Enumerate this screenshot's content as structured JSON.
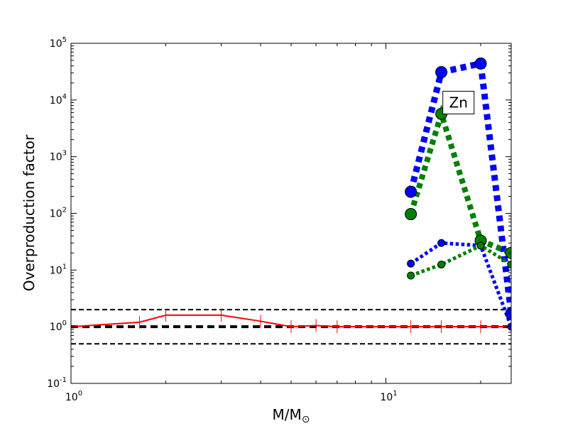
{
  "chart_data": {
    "type": "line",
    "title": "",
    "xlabel": "M/M",
    "xlabel_sub": "⊙",
    "ylabel": "Overproduction factor",
    "xscale": "log",
    "yscale": "log",
    "xlim": [
      1,
      25
    ],
    "ylim": [
      0.1,
      100000
    ],
    "grid": false,
    "x_ticks": [
      {
        "value": 1,
        "base": "10",
        "exp": "0"
      },
      {
        "value": 10,
        "base": "10",
        "exp": "1"
      }
    ],
    "y_ticks": [
      {
        "value": 0.1,
        "base": "10",
        "exp": "-1"
      },
      {
        "value": 1,
        "base": "10",
        "exp": "0"
      },
      {
        "value": 10,
        "base": "10",
        "exp": "1"
      },
      {
        "value": 100,
        "base": "10",
        "exp": "2"
      },
      {
        "value": 1000,
        "base": "10",
        "exp": "3"
      },
      {
        "value": 10000,
        "base": "10",
        "exp": "4"
      },
      {
        "value": 100000,
        "base": "10",
        "exp": "5"
      }
    ],
    "reference_lines": [
      {
        "y": 2.0,
        "style": "dashed",
        "color": "#000000",
        "width": 2
      },
      {
        "y": 1.0,
        "style": "dashed",
        "color": "#000000",
        "width": 4
      },
      {
        "y": 0.5,
        "style": "dashed",
        "color": "#000000",
        "width": 2
      }
    ],
    "series": [
      {
        "color": "#ff0000",
        "style": "solid",
        "width": 2,
        "marker": "vline",
        "x": [
          1.0,
          1.65,
          2.0,
          3.0,
          4.0,
          5.0,
          6.0,
          7.0,
          12.0,
          15.0,
          20.0,
          25.0
        ],
        "y": [
          1.0,
          1.2,
          1.6,
          1.6,
          1.25,
          1.0,
          1.05,
          1.0,
          1.0,
          1.0,
          1.0,
          1.0
        ]
      },
      {
        "color": "#0000ff",
        "style": "dotted",
        "width": 9,
        "marker": "circle",
        "marker_size": 8,
        "x": [
          12.0,
          15.0,
          20.0,
          25.0
        ],
        "y": [
          240,
          31000,
          44000,
          1.7
        ]
      },
      {
        "color": "#008000",
        "style": "dotted",
        "width": 8,
        "marker": "circle",
        "marker_size": 8,
        "x": [
          12.0,
          15.0,
          20.0,
          25.0
        ],
        "y": [
          97,
          5700,
          33,
          20
        ]
      },
      {
        "color": "#0000ff",
        "style": "dotted",
        "width": 5,
        "marker": "circle",
        "marker_size": 5,
        "x": [
          12.0,
          15.0,
          20.0,
          25.0
        ],
        "y": [
          13,
          30,
          27,
          1.0
        ]
      },
      {
        "color": "#008000",
        "style": "dotted",
        "width": 5,
        "marker": "circle",
        "marker_size": 5,
        "x": [
          12.0,
          15.0,
          20.0,
          25.0
        ],
        "y": [
          8,
          12.5,
          27,
          12.5
        ]
      }
    ],
    "annotations": [
      {
        "text": "Zn",
        "x": 17.0,
        "y": 9000
      }
    ]
  }
}
